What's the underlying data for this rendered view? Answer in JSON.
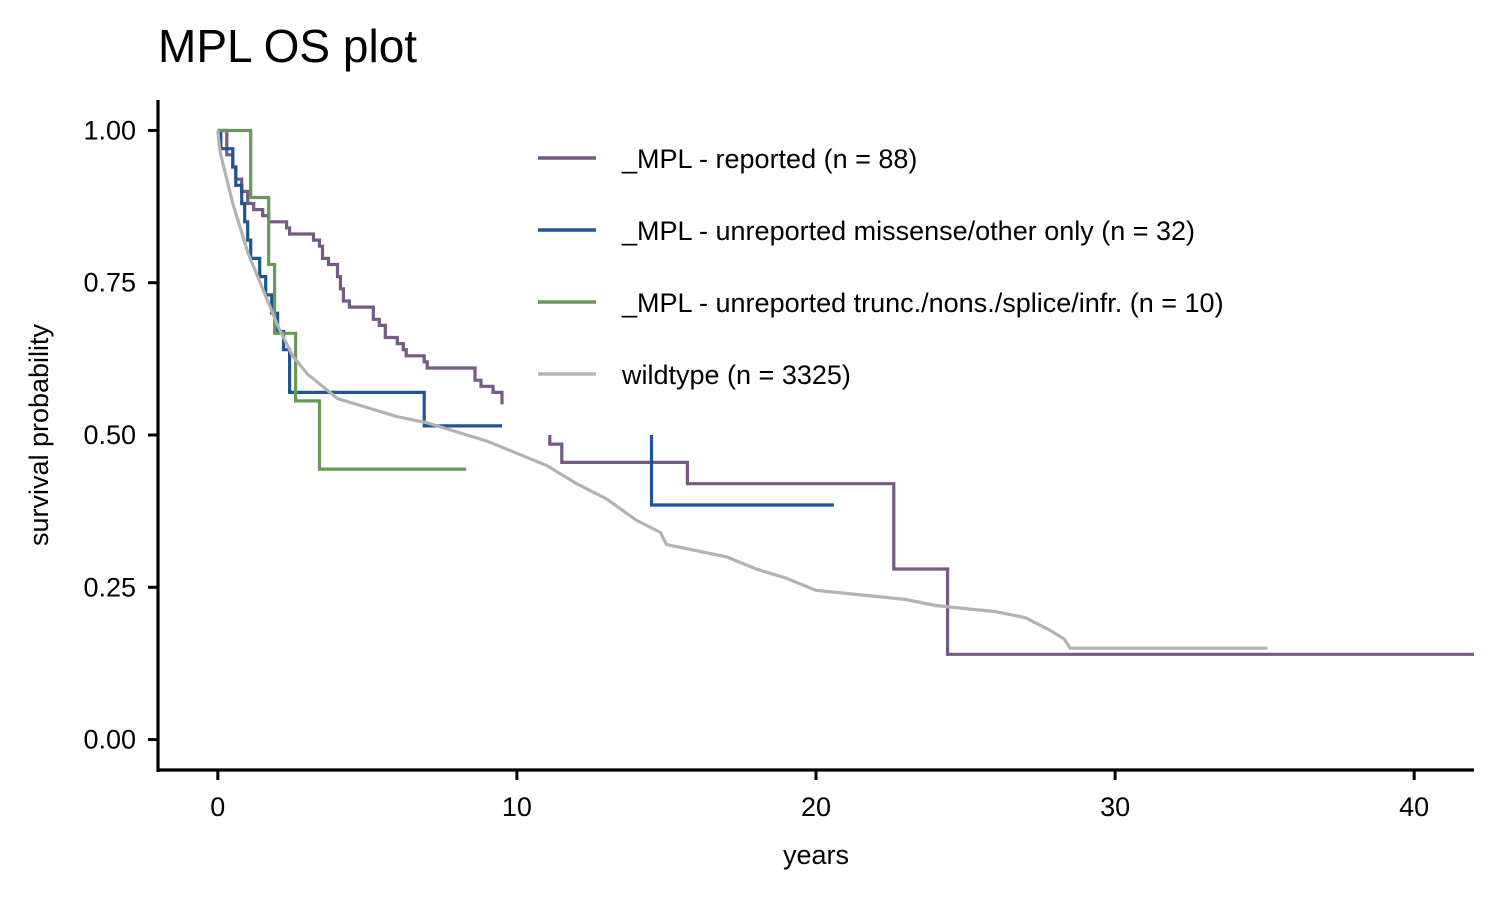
{
  "chart_data": {
    "type": "line",
    "step": true,
    "title": "MPL OS plot",
    "xlabel": "years",
    "ylabel": "survival probability",
    "xlim": [
      -2,
      42
    ],
    "ylim": [
      -0.05,
      1.05
    ],
    "x_ticks": [
      0,
      10,
      20,
      30,
      40
    ],
    "x_tick_labels": [
      "0",
      "10",
      "20",
      "30",
      "40"
    ],
    "y_ticks": [
      0,
      0.25,
      0.5,
      0.75,
      1
    ],
    "y_tick_labels": [
      "0.00",
      "0.25",
      "0.50",
      "0.75",
      "1.00"
    ],
    "grid": false,
    "legend_position": "top-right",
    "series": [
      {
        "name": "_MPL - reported (n = 88)",
        "color": "#745a84",
        "segments": [
          [
            [
              0,
              1
            ],
            [
              0.3,
              1
            ],
            [
              0.3,
              0.96
            ],
            [
              0.5,
              0.96
            ],
            [
              0.5,
              0.94
            ],
            [
              0.6,
              0.94
            ],
            [
              0.6,
              0.92
            ],
            [
              0.8,
              0.92
            ],
            [
              0.8,
              0.9
            ],
            [
              1,
              0.9
            ],
            [
              1,
              0.88
            ],
            [
              1.2,
              0.88
            ],
            [
              1.2,
              0.87
            ],
            [
              1.5,
              0.87
            ],
            [
              1.5,
              0.86
            ],
            [
              1.7,
              0.86
            ],
            [
              1.7,
              0.85
            ],
            [
              2.3,
              0.85
            ],
            [
              2.3,
              0.84
            ],
            [
              2.4,
              0.84
            ],
            [
              2.4,
              0.83
            ],
            [
              3.2,
              0.83
            ],
            [
              3.2,
              0.82
            ],
            [
              3.4,
              0.82
            ],
            [
              3.4,
              0.81
            ],
            [
              3.5,
              0.81
            ],
            [
              3.5,
              0.79
            ],
            [
              3.7,
              0.79
            ],
            [
              3.7,
              0.78
            ],
            [
              4,
              0.78
            ],
            [
              4,
              0.76
            ],
            [
              4.1,
              0.76
            ],
            [
              4.1,
              0.74
            ],
            [
              4.2,
              0.74
            ],
            [
              4.2,
              0.72
            ],
            [
              4.4,
              0.72
            ],
            [
              4.4,
              0.71
            ],
            [
              5.2,
              0.71
            ],
            [
              5.2,
              0.69
            ],
            [
              5.4,
              0.69
            ],
            [
              5.4,
              0.68
            ],
            [
              5.6,
              0.68
            ],
            [
              5.6,
              0.66
            ],
            [
              6,
              0.66
            ],
            [
              6,
              0.65
            ],
            [
              6.2,
              0.65
            ],
            [
              6.2,
              0.64
            ],
            [
              6.3,
              0.64
            ],
            [
              6.3,
              0.63
            ],
            [
              6.9,
              0.63
            ],
            [
              6.9,
              0.62
            ],
            [
              7,
              0.62
            ],
            [
              7,
              0.61
            ],
            [
              8.6,
              0.61
            ],
            [
              8.6,
              0.59
            ],
            [
              8.8,
              0.59
            ],
            [
              8.8,
              0.58
            ],
            [
              9.2,
              0.58
            ],
            [
              9.2,
              0.57
            ],
            [
              9.5,
              0.57
            ],
            [
              9.5,
              0.55
            ]
          ],
          [
            [
              11.1,
              0.5
            ],
            [
              11.1,
              0.485
            ],
            [
              11.5,
              0.485
            ],
            [
              11.5,
              0.455
            ],
            [
              15.7,
              0.455
            ],
            [
              15.7,
              0.42
            ],
            [
              22.6,
              0.42
            ],
            [
              22.6,
              0.28
            ],
            [
              24.4,
              0.28
            ],
            [
              24.4,
              0.14
            ],
            [
              42,
              0.14
            ]
          ]
        ]
      },
      {
        "name": "_MPL - unreported missense/other only (n = 32)",
        "color": "#1f5592",
        "segments": [
          [
            [
              0,
              1
            ],
            [
              0.1,
              1
            ],
            [
              0.1,
              0.97
            ],
            [
              0.5,
              0.97
            ],
            [
              0.5,
              0.94
            ],
            [
              0.6,
              0.94
            ],
            [
              0.6,
              0.91
            ],
            [
              0.8,
              0.91
            ],
            [
              0.8,
              0.88
            ],
            [
              0.9,
              0.88
            ],
            [
              0.9,
              0.85
            ],
            [
              1,
              0.85
            ],
            [
              1,
              0.82
            ],
            [
              1.1,
              0.82
            ],
            [
              1.1,
              0.79
            ],
            [
              1.4,
              0.79
            ],
            [
              1.4,
              0.76
            ],
            [
              1.6,
              0.76
            ],
            [
              1.6,
              0.73
            ],
            [
              1.8,
              0.73
            ],
            [
              1.8,
              0.7
            ],
            [
              2,
              0.7
            ],
            [
              2,
              0.67
            ],
            [
              2.2,
              0.67
            ],
            [
              2.2,
              0.64
            ],
            [
              2.4,
              0.64
            ],
            [
              2.4,
              0.57
            ],
            [
              6.9,
              0.57
            ],
            [
              6.9,
              0.515
            ],
            [
              9.5,
              0.515
            ]
          ],
          [
            [
              14.5,
              0.5
            ],
            [
              14.5,
              0.385
            ],
            [
              20.6,
              0.385
            ]
          ]
        ]
      },
      {
        "name": "_MPL - unreported trunc./nons./splice/infr. (n = 10)",
        "color": "#68985a",
        "segments": [
          [
            [
              0,
              1
            ],
            [
              1.1,
              1
            ],
            [
              1.1,
              0.89
            ],
            [
              1.7,
              0.89
            ],
            [
              1.7,
              0.78
            ],
            [
              1.9,
              0.78
            ],
            [
              1.9,
              0.667
            ],
            [
              2.6,
              0.667
            ],
            [
              2.6,
              0.556
            ],
            [
              3.4,
              0.556
            ],
            [
              3.4,
              0.444
            ],
            [
              8.3,
              0.444
            ]
          ]
        ]
      },
      {
        "name": "wildtype (n = 3325)",
        "color": "#b3b3b3",
        "segments": [
          [
            [
              0,
              1
            ],
            [
              0.05,
              0.975
            ],
            [
              0.1,
              0.96
            ],
            [
              0.2,
              0.94
            ],
            [
              0.3,
              0.92
            ],
            [
              0.5,
              0.88
            ],
            [
              0.75,
              0.84
            ],
            [
              1,
              0.8
            ],
            [
              1.5,
              0.74
            ],
            [
              2,
              0.68
            ],
            [
              2.5,
              0.63
            ],
            [
              3,
              0.6
            ],
            [
              4,
              0.56
            ],
            [
              5,
              0.545
            ],
            [
              6,
              0.53
            ],
            [
              7,
              0.52
            ],
            [
              8,
              0.505
            ],
            [
              9,
              0.49
            ],
            [
              10,
              0.47
            ],
            [
              11,
              0.45
            ],
            [
              12,
              0.42
            ],
            [
              13,
              0.395
            ],
            [
              14,
              0.36
            ],
            [
              14.8,
              0.34
            ],
            [
              15,
              0.32
            ],
            [
              16,
              0.31
            ],
            [
              17,
              0.3
            ],
            [
              18,
              0.28
            ],
            [
              19,
              0.265
            ],
            [
              20,
              0.245
            ],
            [
              21,
              0.24
            ],
            [
              22,
              0.235
            ],
            [
              23,
              0.23
            ],
            [
              24,
              0.22
            ],
            [
              25,
              0.215
            ],
            [
              26,
              0.21
            ],
            [
              27,
              0.2
            ],
            [
              27.8,
              0.18
            ],
            [
              28.3,
              0.165
            ],
            [
              28.5,
              0.15
            ],
            [
              35.1,
              0.15
            ]
          ]
        ]
      }
    ]
  }
}
